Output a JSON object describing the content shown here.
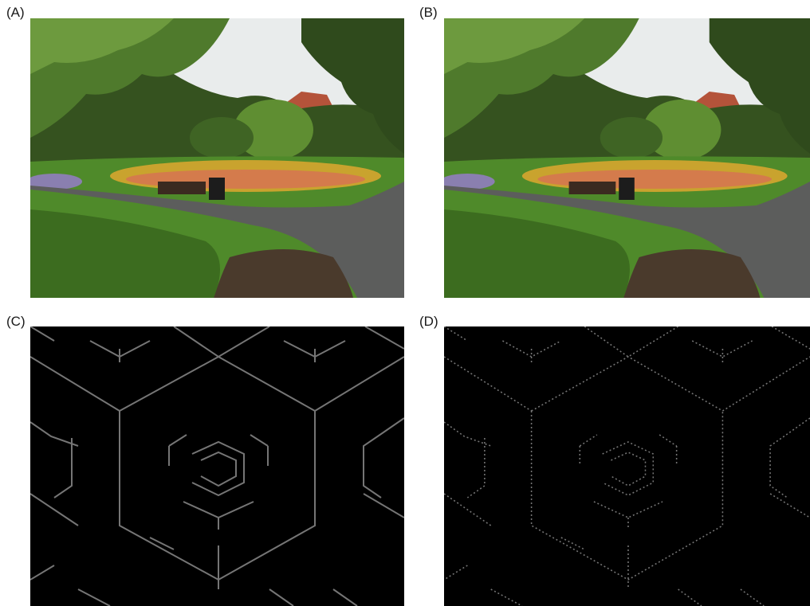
{
  "panels": [
    {
      "id": "a",
      "label": "(A)",
      "kind": "photo"
    },
    {
      "id": "b",
      "label": "(B)",
      "kind": "photo"
    },
    {
      "id": "c",
      "label": "(C)",
      "kind": "edge-map"
    },
    {
      "id": "d",
      "label": "(D)",
      "kind": "edge-map"
    }
  ],
  "colors": {
    "sky": "#e9ecec",
    "tree_dark": "#2f4a1c",
    "tree_mid": "#4f7a2c",
    "tree_light": "#7fa84a",
    "lawn": "#4f8a2a",
    "lawn_dark": "#3c6c1f",
    "path": "#5c5d5c",
    "soil": "#4a3a2c",
    "roof": "#b4533a",
    "edge_background": "#000000",
    "edge_stroke": "#8a8a8a"
  }
}
